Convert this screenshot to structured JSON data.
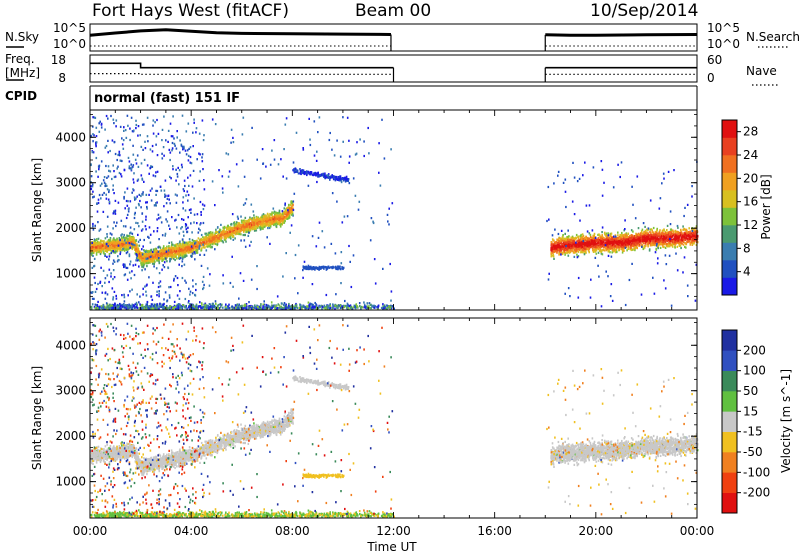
{
  "header": {
    "station": "Fort Hays West (fitACF)",
    "beam": "Beam 00",
    "date": "10/Sep/2014"
  },
  "noise_panel": {
    "left_label": "N.Sky",
    "left_ticks": [
      "10^5",
      "10^0"
    ],
    "right_label": "N.Search",
    "right_ticks": [
      "10^5",
      "10^0"
    ]
  },
  "freq_panel": {
    "left_label_1": "Freq.",
    "left_label_2": "[MHz]",
    "left_ticks": [
      "18",
      "8"
    ],
    "right_label": "Nave",
    "right_ticks": [
      "60",
      "0"
    ]
  },
  "cpid": {
    "label": "CPID",
    "mode": "normal (fast) 151 IF"
  },
  "chart_data": [
    {
      "type": "line",
      "name": "noise",
      "x_unit": "hours UT",
      "series": [
        {
          "name": "N.Sky",
          "segments": [
            {
              "x": [
                0.0,
                1.0,
                2.0,
                3.0,
                4.0,
                5.0,
                6.0,
                8.0,
                10.0,
                11.9
              ],
              "y": [
                3.0,
                3.6,
                4.2,
                4.5,
                4.1,
                3.7,
                3.5,
                3.4,
                3.3,
                3.2
              ]
            },
            {
              "x": [
                18.0,
                19.0,
                20.0,
                22.0,
                24.0
              ],
              "y": [
                3.1,
                3.0,
                3.0,
                3.1,
                3.2
              ]
            }
          ]
        },
        {
          "name": "N.Search",
          "segments": [
            {
              "x": [
                0.0,
                11.9
              ],
              "y": [
                0.0,
                0.0
              ]
            },
            {
              "x": [
                18.0,
                24.0
              ],
              "y": [
                0.0,
                0.0
              ]
            }
          ]
        }
      ],
      "xlim": [
        0,
        24
      ]
    },
    {
      "type": "line",
      "name": "frequency_nave",
      "series": [
        {
          "name": "Freq.",
          "segments": [
            {
              "x": [
                0.0,
                2.0,
                2.0,
                12.0
              ],
              "y": [
                16.5,
                16.5,
                14.5,
                14.5
              ]
            },
            {
              "x": [
                18.0,
                24.0
              ],
              "y": [
                14.5,
                14.5
              ]
            }
          ]
        },
        {
          "name": "Nave",
          "segments": [
            {
              "x": [
                0.0,
                2.0,
                2.0,
                12.0
              ],
              "y": [
                23,
                23,
                21,
                21
              ]
            },
            {
              "x": [
                18.0,
                24.0
              ],
              "y": [
                21,
                21
              ]
            }
          ]
        }
      ],
      "xlim": [
        0,
        24
      ]
    },
    {
      "type": "heatmap",
      "name": "power",
      "xlabel": "",
      "ylabel": "Slant Range [km]",
      "yticks": [
        "1000",
        "2000",
        "3000",
        "4000"
      ],
      "ylim": [
        200,
        4600
      ],
      "xlim": [
        0,
        24
      ],
      "colorbar": {
        "label": "Power [dB]",
        "ticks": [
          "4",
          "8",
          "12",
          "16",
          "20",
          "24",
          "28"
        ],
        "range": [
          0,
          30
        ],
        "colors": [
          "#1a1ae6",
          "#2050c0",
          "#3a7db0",
          "#4a9a70",
          "#7dc23a",
          "#d8c020",
          "#f0a020",
          "#f07020",
          "#e84020",
          "#e01010"
        ]
      },
      "scatter_bands": [
        {
          "x": [
            0.0,
            1.0,
            1.7,
            2.0,
            4.0,
            6.0,
            7.0,
            7.6,
            8.0
          ],
          "y_center": [
            1600,
            1650,
            1700,
            1350,
            1600,
            2050,
            2200,
            2250,
            2500
          ],
          "y_width": 500
        },
        {
          "x": [
            18.2,
            19.0,
            20.0,
            21.0,
            22.0,
            23.0,
            24.0
          ],
          "y_center": [
            1600,
            1650,
            1700,
            1700,
            1800,
            1800,
            1850
          ],
          "y_width": 600
        }
      ]
    },
    {
      "type": "heatmap",
      "name": "velocity",
      "xlabel": "Time UT",
      "ylabel": "Slant Range [km]",
      "xticks": [
        "00:00",
        "04:00",
        "08:00",
        "12:00",
        "16:00",
        "20:00",
        "00:00"
      ],
      "yticks": [
        "1000",
        "2000",
        "3000",
        "4000"
      ],
      "ylim": [
        200,
        4600
      ],
      "xlim": [
        0,
        24
      ],
      "colorbar": {
        "label": "Velocity [m s^-1]",
        "ticks": [
          "200",
          "100",
          "50",
          "15",
          "-15",
          "-50",
          "-100",
          "-200"
        ],
        "colors": [
          "#2030a0",
          "#3050c0",
          "#3a8a5a",
          "#60c040",
          "#c8c8c8",
          "#f0c020",
          "#f08020",
          "#f04010",
          "#e01010"
        ]
      }
    }
  ]
}
